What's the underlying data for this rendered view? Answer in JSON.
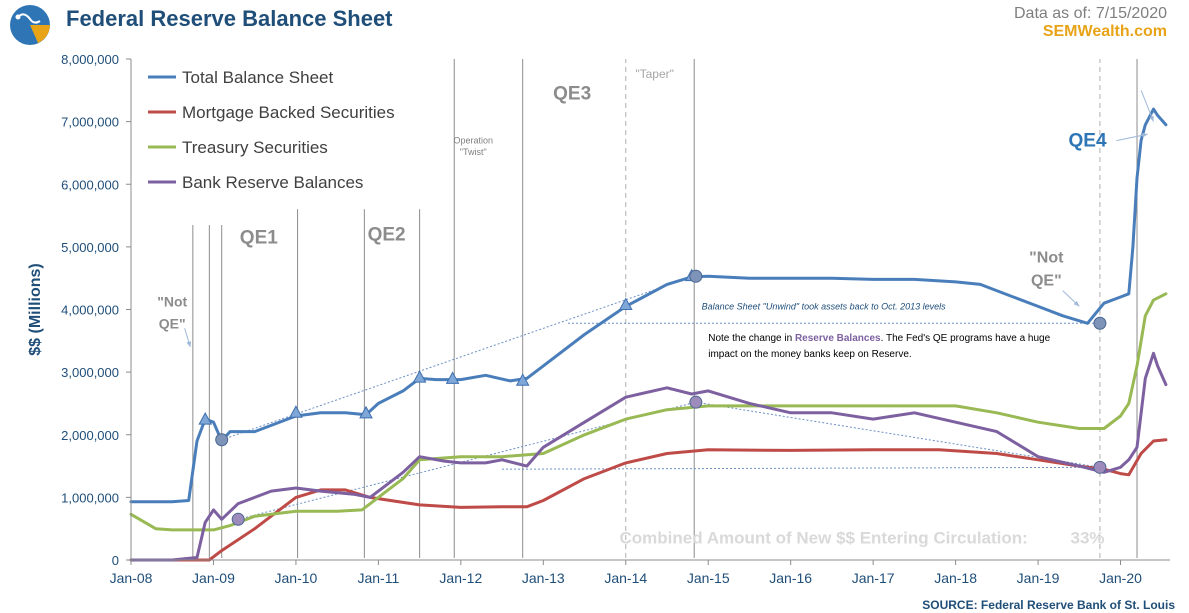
{
  "header": {
    "title": "Federal Reserve Balance Sheet",
    "data_as_of": "Data as of:  7/15/2020",
    "brand": "SEMWealth.com"
  },
  "source": "SOURCE:  Federal Reserve Bank of St. Louis",
  "colors": {
    "total": "#4a7ebb",
    "mbs": "#be4b48",
    "treasury": "#98b954",
    "reserves": "#7d60a0",
    "axis_text": "#1f4e79",
    "annotation": "#a6a6a6"
  },
  "chart_data": {
    "type": "line",
    "title": "Federal Reserve Balance Sheet",
    "xlabel": "",
    "ylabel": "$$ (Millions)",
    "xlim": [
      2008.0,
      2020.6
    ],
    "ylim": [
      0,
      8000000
    ],
    "x_ticks": [
      {
        "x": 2008,
        "label": "Jan-08"
      },
      {
        "x": 2009,
        "label": "Jan-09"
      },
      {
        "x": 2010,
        "label": "Jan-10"
      },
      {
        "x": 2011,
        "label": "Jan-11"
      },
      {
        "x": 2012,
        "label": "Jan-12"
      },
      {
        "x": 2013,
        "label": "Jan-13"
      },
      {
        "x": 2014,
        "label": "Jan-14"
      },
      {
        "x": 2015,
        "label": "Jan-15"
      },
      {
        "x": 2016,
        "label": "Jan-16"
      },
      {
        "x": 2017,
        "label": "Jan-17"
      },
      {
        "x": 2018,
        "label": "Jan-18"
      },
      {
        "x": 2019,
        "label": "Jan-19"
      },
      {
        "x": 2020,
        "label": "Jan-20"
      }
    ],
    "y_ticks": [
      {
        "y": 0,
        "label": "0"
      },
      {
        "y": 1000000,
        "label": "1,000,000"
      },
      {
        "y": 2000000,
        "label": "2,000,000"
      },
      {
        "y": 3000000,
        "label": "3,000,000"
      },
      {
        "y": 4000000,
        "label": "4,000,000"
      },
      {
        "y": 5000000,
        "label": "5,000,000"
      },
      {
        "y": 6000000,
        "label": "6,000,000"
      },
      {
        "y": 7000000,
        "label": "7,000,000"
      },
      {
        "y": 8000000,
        "label": "8,000,000"
      }
    ],
    "grid": false,
    "legend_position": "top-left",
    "series": [
      {
        "name": "Total Balance Sheet",
        "key": "total",
        "x": [
          2008.0,
          2008.5,
          2008.7,
          2008.8,
          2008.9,
          2009.0,
          2009.1,
          2009.2,
          2009.5,
          2010.0,
          2010.3,
          2010.6,
          2010.85,
          2011.0,
          2011.3,
          2011.5,
          2011.7,
          2012.0,
          2012.3,
          2012.6,
          2012.8,
          2013.0,
          2013.5,
          2014.0,
          2014.5,
          2014.8,
          2015.0,
          2015.5,
          2016.0,
          2016.5,
          2017.0,
          2017.5,
          2018.0,
          2018.3,
          2018.7,
          2019.0,
          2019.3,
          2019.6,
          2019.8,
          2020.0,
          2020.1,
          2020.15,
          2020.2,
          2020.25,
          2020.3,
          2020.4,
          2020.45,
          2020.55
        ],
        "values": [
          930000,
          930000,
          950000,
          1900000,
          2250000,
          2200000,
          1900000,
          2050000,
          2050000,
          2300000,
          2350000,
          2350000,
          2320000,
          2500000,
          2700000,
          2900000,
          2880000,
          2880000,
          2950000,
          2860000,
          2900000,
          3100000,
          3600000,
          4050000,
          4400000,
          4520000,
          4530000,
          4500000,
          4500000,
          4500000,
          4480000,
          4480000,
          4440000,
          4400000,
          4200000,
          4050000,
          3900000,
          3780000,
          4100000,
          4200000,
          4250000,
          5000000,
          6100000,
          6700000,
          6950000,
          7200000,
          7100000,
          6950000
        ]
      },
      {
        "name": "Mortgage Backed Securities",
        "key": "mbs",
        "x": [
          2008.0,
          2008.95,
          2009.1,
          2009.5,
          2010.0,
          2010.3,
          2010.6,
          2010.9,
          2011.5,
          2012.0,
          2012.5,
          2012.8,
          2013.0,
          2013.5,
          2014.0,
          2014.5,
          2015.0,
          2016.0,
          2017.0,
          2017.8,
          2018.5,
          2019.0,
          2019.5,
          2019.8,
          2020.0,
          2020.1,
          2020.25,
          2020.4,
          2020.55
        ],
        "values": [
          0,
          0,
          150000,
          500000,
          1000000,
          1120000,
          1120000,
          1000000,
          880000,
          840000,
          850000,
          850000,
          950000,
          1300000,
          1550000,
          1700000,
          1760000,
          1750000,
          1760000,
          1760000,
          1700000,
          1600000,
          1500000,
          1450000,
          1380000,
          1360000,
          1700000,
          1900000,
          1920000
        ]
      },
      {
        "name": "Treasury Securities",
        "key": "treasury",
        "x": [
          2008.0,
          2008.3,
          2008.5,
          2009.0,
          2009.2,
          2009.5,
          2010.0,
          2010.5,
          2010.8,
          2011.0,
          2011.3,
          2011.5,
          2012.0,
          2012.5,
          2013.0,
          2013.5,
          2014.0,
          2014.5,
          2015.0,
          2016.0,
          2017.0,
          2018.0,
          2018.5,
          2019.0,
          2019.5,
          2019.8,
          2020.0,
          2020.1,
          2020.2,
          2020.3,
          2020.4,
          2020.55
        ],
        "values": [
          730000,
          500000,
          480000,
          480000,
          550000,
          700000,
          780000,
          780000,
          800000,
          1000000,
          1300000,
          1600000,
          1650000,
          1650000,
          1700000,
          2000000,
          2250000,
          2400000,
          2460000,
          2460000,
          2460000,
          2460000,
          2350000,
          2200000,
          2100000,
          2100000,
          2300000,
          2500000,
          3100000,
          3900000,
          4150000,
          4250000
        ]
      },
      {
        "name": "Bank Reserve Balances",
        "key": "reserves",
        "x": [
          2008.0,
          2008.5,
          2008.8,
          2008.9,
          2009.0,
          2009.1,
          2009.3,
          2009.5,
          2009.7,
          2010.0,
          2010.3,
          2010.7,
          2010.9,
          2011.0,
          2011.3,
          2011.5,
          2011.8,
          2012.0,
          2012.3,
          2012.5,
          2012.8,
          2013.0,
          2013.5,
          2014.0,
          2014.5,
          2014.8,
          2015.0,
          2015.5,
          2016.0,
          2016.5,
          2017.0,
          2017.5,
          2018.0,
          2018.5,
          2019.0,
          2019.5,
          2019.8,
          2020.0,
          2020.1,
          2020.2,
          2020.3,
          2020.4,
          2020.45,
          2020.55
        ],
        "values": [
          0,
          0,
          40000,
          600000,
          800000,
          650000,
          900000,
          1000000,
          1100000,
          1150000,
          1100000,
          1050000,
          1000000,
          1100000,
          1400000,
          1650000,
          1580000,
          1550000,
          1550000,
          1600000,
          1500000,
          1800000,
          2200000,
          2600000,
          2750000,
          2650000,
          2700000,
          2500000,
          2350000,
          2350000,
          2250000,
          2350000,
          2200000,
          2050000,
          1650000,
          1500000,
          1400000,
          1480000,
          1600000,
          1800000,
          2900000,
          3300000,
          3100000,
          2800000
        ]
      }
    ],
    "vertical_markers": [
      {
        "x": 2008.75,
        "style": "solid",
        "top": 5350000
      },
      {
        "x": 2008.95,
        "style": "solid",
        "top": 5350000
      },
      {
        "x": 2009.1,
        "style": "solid",
        "top": 5350000
      },
      {
        "x": 2010.02,
        "style": "solid",
        "top": 5600000
      },
      {
        "x": 2010.83,
        "style": "solid",
        "top": 5600000
      },
      {
        "x": 2011.5,
        "style": "solid",
        "top": 5600000
      },
      {
        "x": 2011.92,
        "style": "solid",
        "top": 8000000
      },
      {
        "x": 2012.75,
        "style": "solid",
        "top": 8000000
      },
      {
        "x": 2014.0,
        "style": "dashed",
        "top": 8000000
      },
      {
        "x": 2014.83,
        "style": "solid",
        "top": 8000000
      },
      {
        "x": 2019.75,
        "style": "dashed",
        "top": 8000000
      },
      {
        "x": 2020.2,
        "style": "solid",
        "top": 8000000
      }
    ],
    "triangle_markers": [
      {
        "x": 2008.9,
        "y": 2250000
      },
      {
        "x": 2010.0,
        "y": 2360000
      },
      {
        "x": 2010.85,
        "y": 2350000
      },
      {
        "x": 2011.5,
        "y": 2920000
      },
      {
        "x": 2011.9,
        "y": 2900000
      },
      {
        "x": 2012.75,
        "y": 2870000
      },
      {
        "x": 2014.0,
        "y": 4080000
      },
      {
        "x": 2014.8,
        "y": 4540000
      }
    ],
    "circle_markers": [
      {
        "x": 2009.1,
        "y": 1920000,
        "series": "total"
      },
      {
        "x": 2014.85,
        "y": 4530000,
        "series": "total"
      },
      {
        "x": 2019.75,
        "y": 3780000,
        "series": "total"
      },
      {
        "x": 2009.3,
        "y": 650000,
        "series": "reserves"
      },
      {
        "x": 2014.85,
        "y": 2520000,
        "series": "reserves"
      },
      {
        "x": 2019.75,
        "y": 1480000,
        "series": "reserves"
      }
    ],
    "guide_lines": [
      {
        "x1": 2009.1,
        "y1": 1920000,
        "x2": 2014.8,
        "y2": 4520000,
        "style": "dotted"
      },
      {
        "x1": 2013.3,
        "y1": 3780000,
        "x2": 2019.75,
        "y2": 3780000,
        "style": "dotted"
      },
      {
        "x1": 2009.3,
        "y1": 650000,
        "x2": 2014.85,
        "y2": 2520000,
        "style": "dotted"
      },
      {
        "x1": 2014.85,
        "y1": 2520000,
        "x2": 2019.75,
        "y2": 1480000,
        "style": "dotted"
      },
      {
        "x1": 2012.5,
        "y1": 1450000,
        "x2": 2019.75,
        "y2": 1480000,
        "style": "dotted"
      }
    ],
    "annotations": {
      "qe1": {
        "text": "QE1",
        "x": 2009.55,
        "y": 5050000
      },
      "qe2": {
        "text": "QE2",
        "x": 2011.1,
        "y": 5100000
      },
      "qe3": {
        "text": "QE3",
        "x": 2013.35,
        "y": 7350000
      },
      "qe4": {
        "text": "QE4",
        "x": 2019.6,
        "y": 6600000
      },
      "operation": {
        "text": "Operation",
        "x": 2012.15,
        "y": 6650000
      },
      "twist": {
        "text": "\"Twist\"",
        "x": 2012.15,
        "y": 6470000
      },
      "taper": {
        "text": "\"Taper\"",
        "x": 2014.35,
        "y": 7700000
      },
      "not_qe_left_1": {
        "text": "\"Not",
        "x": 2008.5,
        "y": 4050000
      },
      "not_qe_left_2": {
        "text": "QE\"",
        "x": 2008.5,
        "y": 3700000
      },
      "not_qe_right_1": {
        "text": "\"Not",
        "x": 2019.1,
        "y": 4750000
      },
      "not_qe_right_2": {
        "text": "QE\"",
        "x": 2019.1,
        "y": 4380000
      },
      "unwind_note": {
        "text": "Balance Sheet \"Unwind\" took assets back to Oct. 2013 levels",
        "x": 2016.4,
        "y": 4000000
      },
      "reserve_note_1_pre": {
        "text": "Note the change in ",
        "x": 2015.0,
        "y": 3500000
      },
      "reserve_note_1_hl": {
        "text": "Reserve Balances",
        "x": 2015.0,
        "y": 3500000
      },
      "reserve_note_1_post": {
        "text": ". The Fed's QE programs have a huge",
        "x": 2015.0,
        "y": 3500000
      },
      "reserve_note_2": {
        "text": "impact on the money banks keep on Reserve.",
        "x": 2015.0,
        "y": 3240000
      },
      "combined_label": {
        "text": "Combined  Amount  of  New $$  Entering  Circulation:",
        "x": 2016.4,
        "y": 260000
      },
      "combined_value": {
        "text": "33%",
        "x": 2019.6,
        "y": 260000
      }
    }
  }
}
